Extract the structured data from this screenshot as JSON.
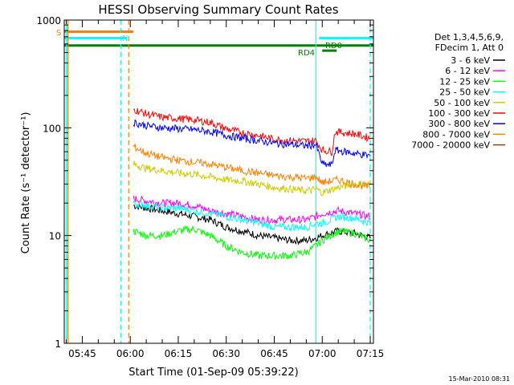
{
  "chart_data": {
    "type": "line",
    "title": "HESSI Observing Summary Count Rates",
    "xlabel": "Start Time (01-Sep-09 05:39:22)",
    "ylabel": "Count Rate (s⁻¹ detector⁻¹)",
    "y_scale": "log",
    "ylim": [
      1,
      1000
    ],
    "xlim": [
      "05:39:22",
      "07:16:00"
    ],
    "x_ticks": [
      "05:45",
      "06:00",
      "06:15",
      "06:30",
      "06:45",
      "07:00",
      "07:15"
    ],
    "y_ticks": [
      "1",
      "10",
      "100",
      "1000"
    ],
    "legend_header": [
      "Det 1,3,4,5,6,9,",
      "FDecim 1, Att 0"
    ],
    "legend_position": "right",
    "footer_date": "15-Mar-2010 08:31",
    "annotations": {
      "s_label": "S",
      "n_label": "N",
      "rd0_label": "RD0",
      "rd4_label": "RD4"
    },
    "intervals": [
      {
        "kind": "S",
        "color": "#ff8000",
        "start": "05:39:22",
        "end": "06:01:00",
        "y": 780
      },
      {
        "kind": "N",
        "color": "#00ffff",
        "start": "05:39:22",
        "end": "05:59:00",
        "y": 680
      },
      {
        "kind": "N",
        "color": "#00ffff",
        "start": "06:59:00",
        "end": "07:16:00",
        "y": 680
      },
      {
        "kind": "RD",
        "color": "#008000",
        "start": "05:39:22",
        "end": "07:16:00",
        "y": 580
      },
      {
        "kind": "RD4",
        "color": "#008000",
        "start": "07:00:00",
        "end": "07:04:30",
        "y": 520
      }
    ],
    "vlines": [
      {
        "t": "05:40:00",
        "color": "#00ffff",
        "style": "solid"
      },
      {
        "t": "05:40:30",
        "color": "#ff8000",
        "style": "solid"
      },
      {
        "t": "05:57:00",
        "color": "#00ffff",
        "style": "dashed"
      },
      {
        "t": "05:59:30",
        "color": "#ff8000",
        "style": "dashed"
      },
      {
        "t": "06:58:00",
        "color": "#00ffff",
        "style": "solid"
      },
      {
        "t": "07:15:00",
        "color": "#00ffff",
        "style": "dashed"
      }
    ],
    "series": [
      {
        "name": "3 - 6 keV",
        "color": "#000000",
        "points": [
          [
            "06:01",
            19
          ],
          [
            "06:05",
            18
          ],
          [
            "06:10",
            17
          ],
          [
            "06:15",
            16
          ],
          [
            "06:20",
            15
          ],
          [
            "06:25",
            14
          ],
          [
            "06:30",
            12
          ],
          [
            "06:35",
            11
          ],
          [
            "06:40",
            10
          ],
          [
            "06:45",
            9.5
          ],
          [
            "06:50",
            9
          ],
          [
            "06:55",
            9
          ],
          [
            "06:58",
            9.5
          ],
          [
            "07:00",
            10
          ],
          [
            "07:05",
            11
          ],
          [
            "07:10",
            10.5
          ],
          [
            "07:15",
            9.5
          ]
        ]
      },
      {
        "name": "6 - 12 keV",
        "color": "#ff00ff",
        "points": [
          [
            "06:01",
            22
          ],
          [
            "06:05",
            21
          ],
          [
            "06:10",
            20
          ],
          [
            "06:15",
            20
          ],
          [
            "06:20",
            19
          ],
          [
            "06:25",
            17
          ],
          [
            "06:30",
            16
          ],
          [
            "06:35",
            15
          ],
          [
            "06:40",
            14
          ],
          [
            "06:45",
            14
          ],
          [
            "06:50",
            14
          ],
          [
            "06:55",
            14
          ],
          [
            "06:58",
            15
          ],
          [
            "07:00",
            16
          ],
          [
            "07:05",
            17
          ],
          [
            "07:10",
            16
          ],
          [
            "07:15",
            15
          ]
        ]
      },
      {
        "name": "12 - 25 keV",
        "color": "#00ff00",
        "points": [
          [
            "06:01",
            11
          ],
          [
            "06:05",
            10
          ],
          [
            "06:10",
            10
          ],
          [
            "06:15",
            11
          ],
          [
            "06:20",
            11.5
          ],
          [
            "06:25",
            10
          ],
          [
            "06:30",
            8
          ],
          [
            "06:35",
            7
          ],
          [
            "06:40",
            6.5
          ],
          [
            "06:45",
            6.5
          ],
          [
            "06:50",
            6.5
          ],
          [
            "06:55",
            7
          ],
          [
            "06:58",
            8
          ],
          [
            "07:00",
            9
          ],
          [
            "07:05",
            11
          ],
          [
            "07:10",
            10.5
          ],
          [
            "07:15",
            9
          ]
        ]
      },
      {
        "name": "25 - 50 keV",
        "color": "#00ffff",
        "points": [
          [
            "06:01",
            20
          ],
          [
            "06:05",
            19
          ],
          [
            "06:10",
            18
          ],
          [
            "06:15",
            18
          ],
          [
            "06:20",
            17
          ],
          [
            "06:25",
            16
          ],
          [
            "06:30",
            15
          ],
          [
            "06:35",
            14
          ],
          [
            "06:40",
            13
          ],
          [
            "06:45",
            12
          ],
          [
            "06:50",
            12
          ],
          [
            "06:55",
            12
          ],
          [
            "06:58",
            13
          ],
          [
            "07:00",
            13
          ],
          [
            "07:05",
            15
          ],
          [
            "07:10",
            14.5
          ],
          [
            "07:15",
            13
          ]
        ]
      },
      {
        "name": "50 - 100 keV",
        "color": "#cccc00",
        "points": [
          [
            "06:01",
            46
          ],
          [
            "06:05",
            42
          ],
          [
            "06:10",
            40
          ],
          [
            "06:15",
            38
          ],
          [
            "06:20",
            37
          ],
          [
            "06:25",
            35
          ],
          [
            "06:30",
            33
          ],
          [
            "06:35",
            32
          ],
          [
            "06:40",
            30
          ],
          [
            "06:45",
            28
          ],
          [
            "06:50",
            27
          ],
          [
            "06:55",
            26
          ],
          [
            "06:58",
            27
          ],
          [
            "07:00",
            25
          ],
          [
            "07:05",
            28
          ],
          [
            "07:10",
            30
          ],
          [
            "07:15",
            30
          ]
        ]
      },
      {
        "name": "100 - 300 keV",
        "color": "#ff0000",
        "points": [
          [
            "06:01",
            148
          ],
          [
            "06:05",
            135
          ],
          [
            "06:10",
            125
          ],
          [
            "06:15",
            122
          ],
          [
            "06:20",
            118
          ],
          [
            "06:25",
            112
          ],
          [
            "06:30",
            98
          ],
          [
            "06:35",
            90
          ],
          [
            "06:40",
            85
          ],
          [
            "06:45",
            78
          ],
          [
            "06:50",
            76
          ],
          [
            "06:55",
            75
          ],
          [
            "06:58",
            76
          ],
          [
            "07:00",
            62
          ],
          [
            "07:03",
            60
          ],
          [
            "07:04",
            92
          ],
          [
            "07:10",
            88
          ],
          [
            "07:15",
            80
          ]
        ]
      },
      {
        "name": "300 - 800 keV",
        "color": "#0000ff",
        "points": [
          [
            "06:01",
            112
          ],
          [
            "06:05",
            105
          ],
          [
            "06:10",
            100
          ],
          [
            "06:15",
            98
          ],
          [
            "06:20",
            96
          ],
          [
            "06:25",
            92
          ],
          [
            "06:30",
            85
          ],
          [
            "06:35",
            80
          ],
          [
            "06:40",
            76
          ],
          [
            "06:45",
            72
          ],
          [
            "06:50",
            70
          ],
          [
            "06:55",
            68
          ],
          [
            "06:58",
            70
          ],
          [
            "07:00",
            46
          ],
          [
            "07:03",
            45
          ],
          [
            "07:04",
            62
          ],
          [
            "07:10",
            58
          ],
          [
            "07:15",
            55
          ]
        ]
      },
      {
        "name": "800 - 7000 keV",
        "color": "#ff8000",
        "points": [
          [
            "06:01",
            67
          ],
          [
            "06:05",
            58
          ],
          [
            "06:10",
            53
          ],
          [
            "06:15",
            50
          ],
          [
            "06:20",
            48
          ],
          [
            "06:25",
            46
          ],
          [
            "06:30",
            43
          ],
          [
            "06:35",
            40
          ],
          [
            "06:40",
            38
          ],
          [
            "06:45",
            36
          ],
          [
            "06:50",
            35
          ],
          [
            "06:55",
            34
          ],
          [
            "06:58",
            35
          ],
          [
            "07:00",
            31
          ],
          [
            "07:05",
            33
          ],
          [
            "07:10",
            30
          ],
          [
            "07:15",
            28
          ]
        ]
      },
      {
        "name": "7000 - 20000 keV",
        "color": "#8b4513",
        "points": []
      }
    ]
  }
}
